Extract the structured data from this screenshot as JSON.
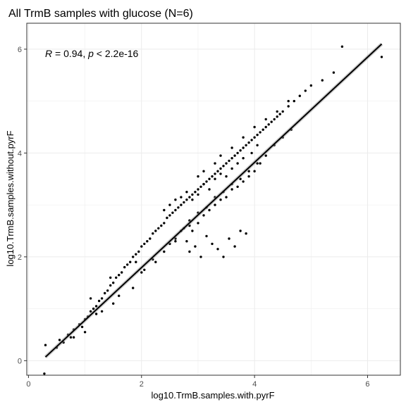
{
  "chart_data": {
    "type": "scatter",
    "title": "All TrmB samples with glucose (N=6)",
    "xlabel": "log10.TrmB.samples.with.pyrF",
    "ylabel": "log10.TrmB.samples.without.pyrF",
    "xlim": [
      -0.03,
      6.58
    ],
    "ylim": [
      -0.28,
      6.5
    ],
    "x_ticks": [
      "0",
      "2",
      "4",
      "6"
    ],
    "y_ticks": [
      "0",
      "2",
      "4",
      "6"
    ],
    "grid": true,
    "annotation": {
      "r_symbol": "R",
      "r_value": " = 0.94, ",
      "p_symbol": "p",
      "p_value": " < 2.2e-16"
    },
    "regression": {
      "x": [
        0.3,
        6.25
      ],
      "y": [
        0.07,
        6.1
      ]
    },
    "points": {
      "x": [
        0.3,
        0.28,
        0.5,
        0.55,
        0.62,
        0.7,
        0.75,
        0.8,
        0.9,
        0.95,
        1.0,
        1.05,
        1.1,
        1.15,
        1.2,
        1.25,
        1.3,
        1.35,
        1.4,
        1.45,
        1.5,
        1.55,
        1.6,
        1.65,
        1.7,
        1.75,
        1.8,
        1.85,
        1.9,
        1.95,
        2.0,
        2.05,
        2.1,
        2.15,
        2.2,
        2.25,
        2.3,
        2.35,
        2.4,
        2.45,
        2.5,
        2.55,
        2.6,
        2.65,
        2.7,
        2.75,
        2.8,
        2.85,
        2.9,
        2.95,
        3.0,
        3.05,
        3.1,
        3.15,
        3.2,
        3.25,
        3.3,
        3.35,
        3.4,
        3.45,
        3.5,
        3.55,
        3.6,
        3.65,
        3.7,
        3.75,
        3.8,
        3.85,
        3.9,
        3.95,
        4.0,
        4.05,
        4.1,
        4.15,
        4.2,
        4.25,
        4.3,
        4.35,
        4.4,
        4.45,
        4.5,
        4.6,
        4.7,
        4.8,
        4.9,
        5.0,
        5.2,
        5.4,
        5.55,
        6.25,
        1.2,
        1.1,
        1.5,
        1.45,
        1.85,
        1.9,
        2.05,
        2.25,
        2.4,
        2.6,
        2.75,
        2.85,
        2.9,
        3.0,
        3.1,
        3.2,
        3.3,
        3.4,
        3.5,
        3.6,
        3.7,
        3.8,
        3.9,
        4.0,
        4.1,
        2.8,
        2.85,
        2.95,
        3.05,
        3.15,
        3.25,
        3.35,
        3.45,
        3.55,
        3.65,
        3.75,
        3.85,
        2.9,
        3.0,
        3.1,
        3.2,
        3.3,
        3.4,
        3.5,
        3.6,
        3.7,
        3.8,
        3.95,
        4.05,
        2.4,
        2.5,
        2.6,
        2.7,
        2.8,
        3.0,
        3.1,
        3.3,
        3.4,
        3.6,
        3.8,
        4.0,
        4.2,
        4.4,
        4.6,
        0.8,
        1.0,
        1.3,
        1.6,
        2.0,
        2.2,
        2.5,
        2.6,
        2.7,
        2.85,
        3.0,
        3.15,
        3.3,
        3.45,
        3.6,
        3.75,
        3.9,
        4.05,
        4.2,
        4.35,
        4.5,
        4.65
      ],
      "y": [
        0.3,
        -0.25,
        0.25,
        0.4,
        0.35,
        0.5,
        0.45,
        0.6,
        0.7,
        0.65,
        0.8,
        0.85,
        0.95,
        1.0,
        1.05,
        1.15,
        1.2,
        1.3,
        1.35,
        1.45,
        1.5,
        1.6,
        1.65,
        1.7,
        1.8,
        1.85,
        1.9,
        2.0,
        2.05,
        2.1,
        2.2,
        2.25,
        2.3,
        2.35,
        2.45,
        2.5,
        2.55,
        2.6,
        2.65,
        2.75,
        2.8,
        2.85,
        2.9,
        2.95,
        3.0,
        3.05,
        3.1,
        3.15,
        3.2,
        3.25,
        3.3,
        3.35,
        3.4,
        3.45,
        3.5,
        3.55,
        3.6,
        3.65,
        3.7,
        3.75,
        3.8,
        3.85,
        3.9,
        3.95,
        4.0,
        4.05,
        4.1,
        4.15,
        4.2,
        4.25,
        4.3,
        4.35,
        4.4,
        4.45,
        4.5,
        4.55,
        4.6,
        4.65,
        4.7,
        4.75,
        4.8,
        4.9,
        5.0,
        5.1,
        5.2,
        5.3,
        5.4,
        5.55,
        6.05,
        5.85,
        0.9,
        1.2,
        1.1,
        1.6,
        1.4,
        1.9,
        1.75,
        1.9,
        2.1,
        2.3,
        2.55,
        2.7,
        2.5,
        2.65,
        2.8,
        2.9,
        3.0,
        3.1,
        3.15,
        3.3,
        3.35,
        3.45,
        3.55,
        3.65,
        3.8,
        2.3,
        2.1,
        2.2,
        2.0,
        2.4,
        2.25,
        2.15,
        2.0,
        2.35,
        2.2,
        2.5,
        2.45,
        3.1,
        3.2,
        3.4,
        3.3,
        3.5,
        3.6,
        3.55,
        3.7,
        3.8,
        3.9,
        4.0,
        4.15,
        2.9,
        3.0,
        3.1,
        3.15,
        3.25,
        3.55,
        3.65,
        3.8,
        3.95,
        4.1,
        4.3,
        4.5,
        4.65,
        4.8,
        5.0,
        0.45,
        0.55,
        0.95,
        1.25,
        1.7,
        1.95,
        2.25,
        2.35,
        2.5,
        2.6,
        2.85,
        2.95,
        3.15,
        3.25,
        3.4,
        3.5,
        3.65,
        3.8,
        3.95,
        4.15,
        4.3,
        4.45
      ]
    }
  }
}
